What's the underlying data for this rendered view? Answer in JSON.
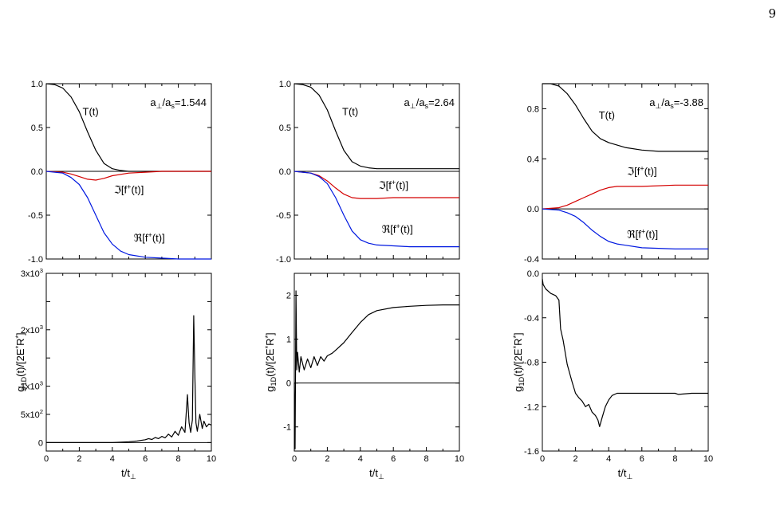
{
  "page": {
    "number": "9"
  },
  "colors": {
    "axis": "#000000",
    "T": "#000000",
    "imag": "#d40000",
    "real": "#0018e0",
    "g": "#000000"
  },
  "chart_data": [
    {
      "id": "top-left",
      "type": "line",
      "annotation": "a⊥/as=1.544",
      "xlim": [
        0,
        10
      ],
      "ylim": [
        -1.0,
        1.0
      ],
      "yticks": [
        -1.0,
        -0.5,
        0.0,
        0.5,
        1.0
      ],
      "ytick_labels": [
        "-1.0",
        "-0.5",
        "0.0",
        "0.5",
        "1.0"
      ],
      "zero_line": true,
      "series": [
        {
          "name": "T(t)",
          "color": "#000000",
          "x": [
            0,
            0.5,
            1,
            1.5,
            2,
            2.5,
            3,
            3.5,
            4,
            4.5,
            5,
            6,
            8,
            10
          ],
          "y": [
            1.0,
            0.99,
            0.95,
            0.85,
            0.68,
            0.45,
            0.24,
            0.09,
            0.03,
            0.01,
            0.0,
            0.0,
            0.0,
            0.0
          ]
        },
        {
          "name": "ℑ[f⁺(t)]",
          "color": "#d40000",
          "x": [
            0,
            1,
            1.5,
            2,
            2.5,
            3,
            3.5,
            4,
            5,
            6,
            7,
            8,
            10
          ],
          "y": [
            0.0,
            -0.01,
            -0.03,
            -0.06,
            -0.09,
            -0.1,
            -0.08,
            -0.05,
            -0.02,
            -0.01,
            0.0,
            0.0,
            0.0
          ]
        },
        {
          "name": "ℜ[f⁺(t)]",
          "color": "#0018e0",
          "x": [
            0,
            1,
            1.5,
            2,
            2.5,
            3,
            3.5,
            4,
            4.5,
            5,
            6,
            7,
            8,
            10
          ],
          "y": [
            0.0,
            -0.02,
            -0.07,
            -0.15,
            -0.3,
            -0.5,
            -0.7,
            -0.83,
            -0.91,
            -0.95,
            -0.98,
            -0.99,
            -1.0,
            -1.0
          ]
        }
      ],
      "labels": [
        {
          "text": "T(t)",
          "x": 2.2,
          "y": 0.64
        },
        {
          "text": "ℑ[f⁺(t)]",
          "x": 4.1,
          "y": -0.25
        },
        {
          "text": "ℜ[f⁺(t)]",
          "x": 5.3,
          "y": -0.8
        }
      ]
    },
    {
      "id": "top-middle",
      "type": "line",
      "annotation": "a⊥/as=2.64",
      "xlim": [
        0,
        10
      ],
      "ylim": [
        -1.0,
        1.0
      ],
      "yticks": [
        -1.0,
        -0.5,
        0.0,
        0.5,
        1.0
      ],
      "ytick_labels": [
        "-1.0",
        "-0.5",
        "0.0",
        "0.5",
        "1.0"
      ],
      "zero_line": true,
      "series": [
        {
          "name": "T(t)",
          "color": "#000000",
          "x": [
            0,
            0.5,
            1,
            1.5,
            2,
            2.5,
            3,
            3.5,
            4,
            4.5,
            5,
            6,
            8,
            10
          ],
          "y": [
            1.0,
            0.99,
            0.96,
            0.87,
            0.7,
            0.46,
            0.24,
            0.11,
            0.06,
            0.04,
            0.03,
            0.03,
            0.03,
            0.03
          ]
        },
        {
          "name": "ℑ[f⁺(t)]",
          "color": "#d40000",
          "x": [
            0,
            1,
            1.5,
            2,
            2.5,
            3,
            3.5,
            4,
            5,
            6,
            8,
            10
          ],
          "y": [
            0.0,
            -0.02,
            -0.05,
            -0.11,
            -0.19,
            -0.26,
            -0.3,
            -0.31,
            -0.31,
            -0.3,
            -0.3,
            -0.3
          ]
        },
        {
          "name": "ℜ[f⁺(t)]",
          "color": "#0018e0",
          "x": [
            0,
            1,
            1.5,
            2,
            2.5,
            3,
            3.5,
            4,
            4.5,
            5,
            6,
            7,
            8,
            10
          ],
          "y": [
            0.0,
            -0.02,
            -0.06,
            -0.14,
            -0.3,
            -0.5,
            -0.68,
            -0.78,
            -0.82,
            -0.84,
            -0.85,
            -0.86,
            -0.86,
            -0.86
          ]
        }
      ],
      "labels": [
        {
          "text": "T(t)",
          "x": 2.9,
          "y": 0.64
        },
        {
          "text": "ℑ[f⁺(t)]",
          "x": 5.1,
          "y": -0.2
        },
        {
          "text": "ℜ[f⁺(t)]",
          "x": 5.3,
          "y": -0.7
        }
      ]
    },
    {
      "id": "top-right",
      "type": "line",
      "annotation": "a⊥/as=-3.88",
      "xlim": [
        0,
        10
      ],
      "ylim": [
        -0.4,
        1.0
      ],
      "yticks": [
        -0.4,
        0.0,
        0.4,
        0.8
      ],
      "ytick_labels": [
        "-0.4",
        "0.0",
        "0.4",
        "0.8"
      ],
      "zero_line": true,
      "series": [
        {
          "name": "T(t)",
          "color": "#000000",
          "x": [
            0,
            0.5,
            1,
            1.5,
            2,
            2.5,
            3,
            3.5,
            4,
            5,
            6,
            7,
            8,
            10
          ],
          "y": [
            1.0,
            1.0,
            0.98,
            0.92,
            0.83,
            0.72,
            0.62,
            0.56,
            0.53,
            0.49,
            0.47,
            0.46,
            0.46,
            0.46
          ]
        },
        {
          "name": "ℑ[f⁺(t)]",
          "color": "#d40000",
          "x": [
            0,
            1,
            1.5,
            2,
            2.5,
            3,
            3.5,
            4,
            4.5,
            5,
            6,
            8,
            10
          ],
          "y": [
            0.0,
            0.01,
            0.03,
            0.06,
            0.09,
            0.12,
            0.15,
            0.17,
            0.18,
            0.18,
            0.18,
            0.19,
            0.19
          ]
        },
        {
          "name": "ℜ[f⁺(t)]",
          "color": "#0018e0",
          "x": [
            0,
            1,
            1.5,
            2,
            2.5,
            3,
            3.5,
            4,
            4.5,
            5,
            6,
            8,
            10
          ],
          "y": [
            0.0,
            -0.01,
            -0.03,
            -0.06,
            -0.11,
            -0.17,
            -0.22,
            -0.26,
            -0.28,
            -0.29,
            -0.31,
            -0.32,
            -0.32
          ]
        }
      ],
      "labels": [
        {
          "text": "T(t)",
          "x": 3.4,
          "y": 0.72
        },
        {
          "text": "ℑ[f⁺(t)]",
          "x": 5.1,
          "y": 0.27
        },
        {
          "text": "ℜ[f⁺(t)]",
          "x": 5.1,
          "y": -0.23
        }
      ]
    },
    {
      "id": "bottom-left",
      "type": "line",
      "xlabel": "t/t⊥",
      "ylabel": "g1D(t)/[2E*R*]",
      "xlim": [
        0,
        10
      ],
      "ylim": [
        -150,
        3000
      ],
      "xticks": [
        0,
        2,
        4,
        6,
        8,
        10
      ],
      "xtick_labels": [
        "0",
        "2",
        "4",
        "6",
        "8",
        "10"
      ],
      "yticks": [
        0,
        500,
        1000,
        1500,
        2000,
        2500,
        3000
      ],
      "ytick_labels": [
        "0",
        "5x10²",
        "1x10³",
        "",
        "2x10³",
        "",
        "3x10³"
      ],
      "zero_line": true,
      "series": [
        {
          "name": "",
          "color": "#000000",
          "x": [
            0,
            2,
            4,
            5,
            5.5,
            6.0,
            6.2,
            6.4,
            6.6,
            6.8,
            7.0,
            7.2,
            7.4,
            7.6,
            7.8,
            8.0,
            8.2,
            8.4,
            8.55,
            8.6,
            8.65,
            8.75,
            8.85,
            8.93,
            9.0,
            9.07,
            9.15,
            9.3,
            9.45,
            9.55,
            9.7,
            9.85,
            10
          ],
          "y": [
            0,
            0,
            0,
            15,
            30,
            50,
            70,
            55,
            90,
            70,
            110,
            85,
            150,
            100,
            200,
            130,
            280,
            180,
            850,
            600,
            350,
            180,
            400,
            2250,
            1200,
            350,
            200,
            500,
            250,
            380,
            280,
            330,
            310
          ]
        }
      ],
      "labels": []
    },
    {
      "id": "bottom-middle",
      "type": "line",
      "xlabel": "t/t⊥",
      "ylabel": "g1D(t)/[2E*R*]",
      "xlim": [
        0,
        10
      ],
      "ylim": [
        -1.55,
        2.5
      ],
      "xticks": [
        0,
        2,
        4,
        6,
        8,
        10
      ],
      "xtick_labels": [
        "0",
        "2",
        "4",
        "6",
        "8",
        "10"
      ],
      "yticks": [
        -1,
        0,
        1,
        2
      ],
      "ytick_labels": [
        "-1",
        "0",
        "1",
        "2"
      ],
      "zero_line": true,
      "series": [
        {
          "name": "",
          "color": "#000000",
          "x": [
            0,
            0.05,
            0.1,
            0.15,
            0.2,
            0.3,
            0.4,
            0.6,
            0.8,
            1.0,
            1.2,
            1.4,
            1.6,
            1.8,
            2.0,
            2.3,
            2.6,
            3.0,
            3.5,
            4.0,
            4.5,
            5.0,
            6.0,
            7.0,
            8.0,
            9.0,
            10
          ],
          "y": [
            0.0,
            -1.5,
            2.1,
            0.3,
            0.7,
            0.25,
            0.6,
            0.3,
            0.55,
            0.35,
            0.6,
            0.4,
            0.6,
            0.5,
            0.62,
            0.68,
            0.78,
            0.92,
            1.15,
            1.38,
            1.56,
            1.65,
            1.72,
            1.75,
            1.77,
            1.78,
            1.78
          ]
        }
      ],
      "labels": []
    },
    {
      "id": "bottom-right",
      "type": "line",
      "xlabel": "t/t⊥",
      "ylabel": "g1D(t)/[2E*R*]",
      "xlim": [
        0,
        10
      ],
      "ylim": [
        -1.6,
        0.0
      ],
      "xticks": [
        0,
        2,
        4,
        6,
        8,
        10
      ],
      "xtick_labels": [
        "0",
        "2",
        "4",
        "6",
        "8",
        "10"
      ],
      "yticks": [
        -1.6,
        -1.2,
        -0.8,
        -0.4,
        0.0
      ],
      "ytick_labels": [
        "-1.6",
        "-1.2",
        "-0.8",
        "-0.4",
        "0.0"
      ],
      "zero_line": false,
      "series": [
        {
          "name": "",
          "color": "#000000",
          "x": [
            0,
            0.05,
            0.2,
            0.5,
            0.8,
            1.0,
            1.1,
            1.25,
            1.5,
            1.8,
            2.0,
            2.2,
            2.4,
            2.6,
            2.8,
            3.0,
            3.2,
            3.35,
            3.45,
            3.6,
            3.8,
            4.0,
            4.2,
            4.5,
            5.0,
            6.0,
            7.0,
            8.0,
            8.2,
            9.0,
            10
          ],
          "y": [
            -0.05,
            -0.1,
            -0.14,
            -0.18,
            -0.2,
            -0.24,
            -0.5,
            -0.6,
            -0.82,
            -0.98,
            -1.08,
            -1.12,
            -1.15,
            -1.2,
            -1.18,
            -1.25,
            -1.28,
            -1.32,
            -1.38,
            -1.3,
            -1.2,
            -1.14,
            -1.1,
            -1.08,
            -1.08,
            -1.08,
            -1.08,
            -1.08,
            -1.09,
            -1.08,
            -1.08
          ]
        }
      ],
      "labels": []
    }
  ]
}
